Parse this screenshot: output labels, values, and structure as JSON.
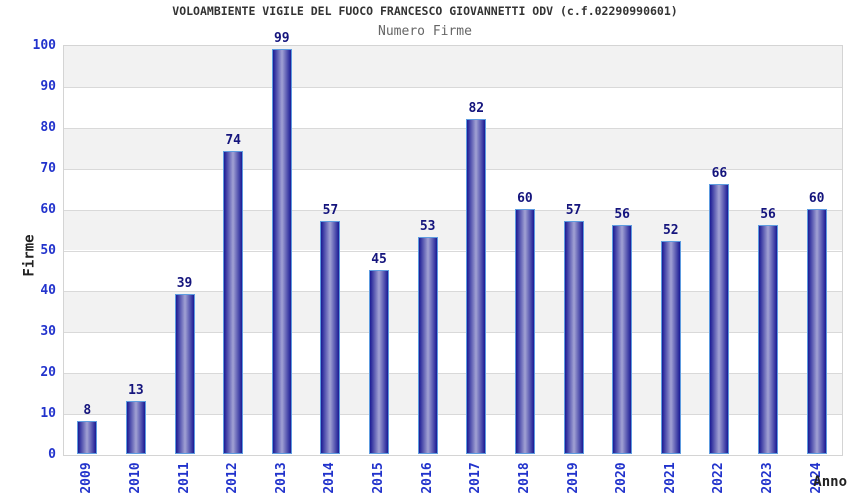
{
  "chart_data": {
    "type": "bar",
    "title": "VOLOAMBIENTE VIGILE DEL FUOCO FRANCESCO GIOVANNETTI ODV (c.f.02290990601)",
    "subtitle": "Numero Firme",
    "xlabel": "Anno",
    "ylabel": "Firme",
    "categories": [
      "2009",
      "2010",
      "2011",
      "2012",
      "2013",
      "2014",
      "2015",
      "2016",
      "2017",
      "2018",
      "2019",
      "2020",
      "2021",
      "2022",
      "2023",
      "2024"
    ],
    "values": [
      8,
      13,
      39,
      74,
      99,
      57,
      45,
      53,
      82,
      60,
      57,
      56,
      52,
      66,
      56,
      60
    ],
    "ylim": [
      0,
      100
    ],
    "ytick_step": 10,
    "grid": true,
    "legend": "none",
    "bands_alternating": true,
    "colors": {
      "bar_dark": "#1a1a94",
      "bar_light": "#a2a2d4",
      "bar_border": "#5e9ce0",
      "tick_label": "#2233cc",
      "value_label": "#15157d",
      "axis_title": "#222222",
      "title": "#333333",
      "subtitle": "#666666",
      "band": "#f2f2f2",
      "gridline": "#d9d9d9",
      "plot_border": "#d4d4d4",
      "background": "#ffffff"
    }
  }
}
